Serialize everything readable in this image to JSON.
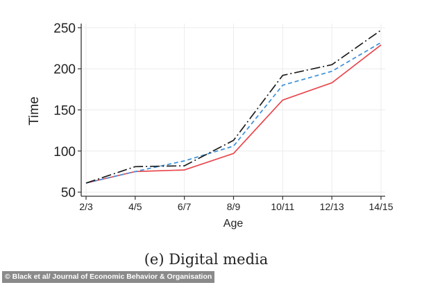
{
  "chart_data": {
    "type": "line",
    "title": "",
    "xlabel": "Age",
    "ylabel": "Time",
    "categories": [
      "2/3",
      "4/5",
      "6/7",
      "8/9",
      "10/11",
      "12/13",
      "14/15"
    ],
    "ylim": [
      45,
      255
    ],
    "yticks": [
      50,
      100,
      150,
      200,
      250
    ],
    "grid": true,
    "legend": "none",
    "series": [
      {
        "values": [
          61,
          75,
          77,
          97,
          162,
          183,
          229
        ],
        "color": "#e8474c",
        "style": "solid"
      },
      {
        "values": [
          61,
          75,
          88,
          106,
          180,
          197,
          232
        ],
        "color": "#3a8fd9",
        "style": "dashed"
      },
      {
        "values": [
          61,
          81,
          82,
          113,
          192,
          205,
          247
        ],
        "color": "#1c1c1c",
        "style": "longdash-dot"
      }
    ]
  },
  "caption": "(e) Digital media",
  "credit": "© Black et al/ Journal of Economic Behavior & Organisation"
}
